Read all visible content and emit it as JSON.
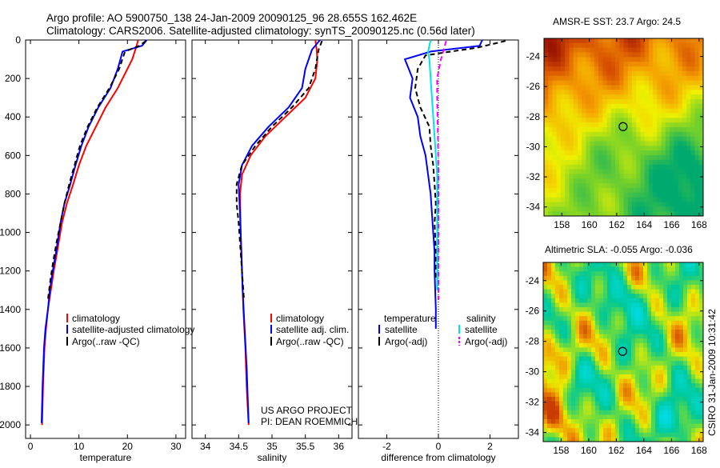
{
  "header": {
    "line1": "Argo profile: AO 5900750_138 24-Jan-2009 20090125_96 28.655S 162.462E",
    "line2": "Climatology: CARS2006. Satellite-adjusted climatology: synTS_20090125.nc (0.56d later)"
  },
  "chart_data": [
    {
      "type": "line",
      "id": "temperature",
      "xlabel": "temperature",
      "ylabel": "",
      "xlim": [
        -1,
        32
      ],
      "ylim": [
        2070,
        0
      ],
      "xticks": [
        0,
        10,
        20,
        30
      ],
      "yticks": [
        0,
        200,
        400,
        600,
        800,
        1000,
        1200,
        1400,
        1600,
        1800,
        2000
      ],
      "legend": {
        "position": "lower-left",
        "labels": [
          "climatology",
          "satellite-adjusted climatology",
          "Argo(..raw -QC)"
        ]
      },
      "series": [
        {
          "name": "climatology",
          "color": "#ff0000",
          "dash": false,
          "x": [
            22.2,
            21.9,
            21.0,
            20.0,
            18.0,
            15.5,
            13.5,
            11.5,
            10.0,
            8.8,
            7.5,
            6.5,
            5.5,
            4.8,
            4.2,
            3.6,
            3.2,
            2.9,
            2.6,
            2.4
          ],
          "y": [
            0,
            30,
            100,
            150,
            250,
            350,
            450,
            550,
            650,
            750,
            850,
            950,
            1100,
            1200,
            1300,
            1400,
            1500,
            1600,
            1800,
            2000
          ]
        },
        {
          "name": "satellite-adjusted climatology",
          "color": "#0000ff",
          "dash": false,
          "x": [
            24.0,
            23.0,
            19.0,
            18.0,
            16.5,
            14.0,
            12.0,
            10.5,
            9.3,
            8.2,
            7.0,
            6.2,
            5.3,
            4.6,
            4.0,
            3.6,
            3.1,
            2.8,
            2.5,
            2.3
          ],
          "y": [
            0,
            30,
            60,
            150,
            250,
            350,
            450,
            550,
            650,
            750,
            850,
            950,
            1100,
            1200,
            1300,
            1400,
            1500,
            1600,
            1800,
            1990
          ]
        },
        {
          "name": "Argo(..raw -QC)",
          "color": "#000000",
          "dash": true,
          "x": [
            23.8,
            22.5,
            19.5,
            18.3,
            16.3,
            13.8,
            11.8,
            10.2,
            9.1,
            8.0,
            7.0,
            6.2,
            5.4,
            4.7,
            4.1,
            3.6
          ],
          "y": [
            5,
            30,
            60,
            150,
            250,
            350,
            450,
            550,
            650,
            750,
            850,
            950,
            1050,
            1150,
            1250,
            1350
          ]
        }
      ]
    },
    {
      "type": "line",
      "id": "salinity",
      "xlabel": "salinity",
      "xlim": [
        33.8,
        36.2
      ],
      "ylim": [
        2070,
        0
      ],
      "xticks": [
        34,
        34.5,
        35,
        35.5,
        36
      ],
      "legend": {
        "position": "lower-left",
        "labels": [
          "climatology",
          "satellite adj. clim.",
          "Argo(..raw -QC)"
        ]
      },
      "series": [
        {
          "name": "climatology",
          "color": "#ff0000",
          "dash": false,
          "x": [
            35.65,
            35.67,
            35.68,
            35.65,
            35.5,
            35.2,
            34.9,
            34.68,
            34.55,
            34.52,
            34.53,
            34.55,
            34.57,
            34.6,
            34.62,
            34.65
          ],
          "y": [
            0,
            50,
            100,
            200,
            300,
            400,
            500,
            600,
            700,
            800,
            1000,
            1200,
            1400,
            1600,
            1800,
            2000
          ]
        },
        {
          "name": "satellite adj. clim.",
          "color": "#0000ff",
          "dash": false,
          "x": [
            35.72,
            35.6,
            35.5,
            35.45,
            35.25,
            34.95,
            34.7,
            34.55,
            34.5,
            34.52,
            34.54,
            34.56,
            34.59,
            34.62,
            34.65
          ],
          "y": [
            0,
            50,
            150,
            250,
            350,
            450,
            550,
            650,
            750,
            900,
            1100,
            1300,
            1500,
            1700,
            1990
          ]
        },
        {
          "name": "Argo(..raw -QC)",
          "color": "#000000",
          "dash": true,
          "x": [
            35.75,
            35.7,
            35.65,
            35.55,
            35.3,
            35.0,
            34.75,
            34.55,
            34.47,
            34.47,
            34.5,
            34.53,
            34.56,
            34.58
          ],
          "y": [
            5,
            50,
            150,
            250,
            350,
            450,
            550,
            650,
            750,
            850,
            950,
            1100,
            1250,
            1350
          ]
        }
      ],
      "annotation": [
        "US ARGO PROJECT",
        "PI: DEAN ROEMMICH"
      ]
    },
    {
      "type": "line",
      "id": "difference",
      "xlabel": "difference from climatology",
      "xlim": [
        -3.1,
        3.1
      ],
      "ylim": [
        2070,
        0
      ],
      "xticks": [
        -2,
        0,
        2
      ],
      "legend": {
        "position": "lower-left",
        "temperature_title": "temperature",
        "salinity_title": "salinity",
        "labels": [
          "satellite",
          "Argo(-adj)",
          "satellite",
          "Argo(-adj)"
        ]
      },
      "series": [
        {
          "name": "temperature satellite",
          "color": "#0000ff",
          "dash": false,
          "x": [
            1.7,
            1.6,
            -0.3,
            -1.3,
            -1.0,
            -1.1,
            -0.8,
            -0.7,
            -0.5,
            -0.4,
            -0.3,
            -0.25,
            -0.2,
            -0.15,
            -0.15,
            -0.1,
            -0.1
          ],
          "y": [
            0,
            30,
            60,
            100,
            200,
            300,
            400,
            500,
            600,
            700,
            800,
            900,
            1000,
            1100,
            1200,
            1400,
            1500
          ]
        },
        {
          "name": "temperature Argo(-adj)",
          "color": "#000000",
          "dash": true,
          "x": [
            2.6,
            1.5,
            -0.5,
            -0.8,
            -0.9,
            -0.7,
            -0.35,
            -0.3,
            -0.2,
            -0.15,
            -0.1,
            -0.15,
            -0.1,
            -0.1
          ],
          "y": [
            5,
            40,
            80,
            150,
            250,
            350,
            450,
            550,
            650,
            750,
            850,
            950,
            1100,
            1250
          ]
        },
        {
          "name": "salinity satellite",
          "color": "#00e5e5",
          "dash": false,
          "x": [
            -0.3,
            -0.4,
            -0.35,
            -0.3,
            -0.25,
            -0.2,
            -0.15,
            -0.1,
            -0.05,
            -0.05,
            -0.05
          ],
          "y": [
            0,
            60,
            100,
            200,
            300,
            400,
            500,
            600,
            700,
            1000,
            1300
          ]
        },
        {
          "name": "salinity Argo(-adj)",
          "color": "#ff00ff",
          "dash": true,
          "x": [
            0.3,
            0.1,
            -0.05,
            -0.05,
            -0.02,
            0.0,
            0.0,
            0.0,
            0.0
          ],
          "y": [
            5,
            100,
            200,
            300,
            500,
            700,
            900,
            1100,
            1350
          ]
        }
      ]
    },
    {
      "type": "heatmap",
      "id": "sst_map",
      "title": "AMSR-E SST: 23.7 Argo: 24.5",
      "xlim": [
        156.7,
        168.3
      ],
      "ylim": [
        -34.6,
        -22.8
      ],
      "xticks": [
        158,
        160,
        162,
        164,
        166,
        168
      ],
      "yticks": [
        -24,
        -26,
        -28,
        -30,
        -32,
        -34
      ],
      "argo_position": [
        162.46,
        -28.66
      ],
      "colormap": "warm"
    },
    {
      "type": "heatmap",
      "id": "sla_map",
      "title": "Altimetric SLA: -0.055 Argo: -0.036",
      "xlim": [
        156.7,
        168.3
      ],
      "ylim": [
        -34.6,
        -22.8
      ],
      "xticks": [
        158,
        160,
        162,
        164,
        166,
        168
      ],
      "yticks": [
        -24,
        -26,
        -28,
        -30,
        -32,
        -34
      ],
      "argo_position": [
        162.46,
        -28.66
      ],
      "colormap": "mixed"
    }
  ],
  "side_label": "CSIRO 31-Jan-2009 10:31:42"
}
